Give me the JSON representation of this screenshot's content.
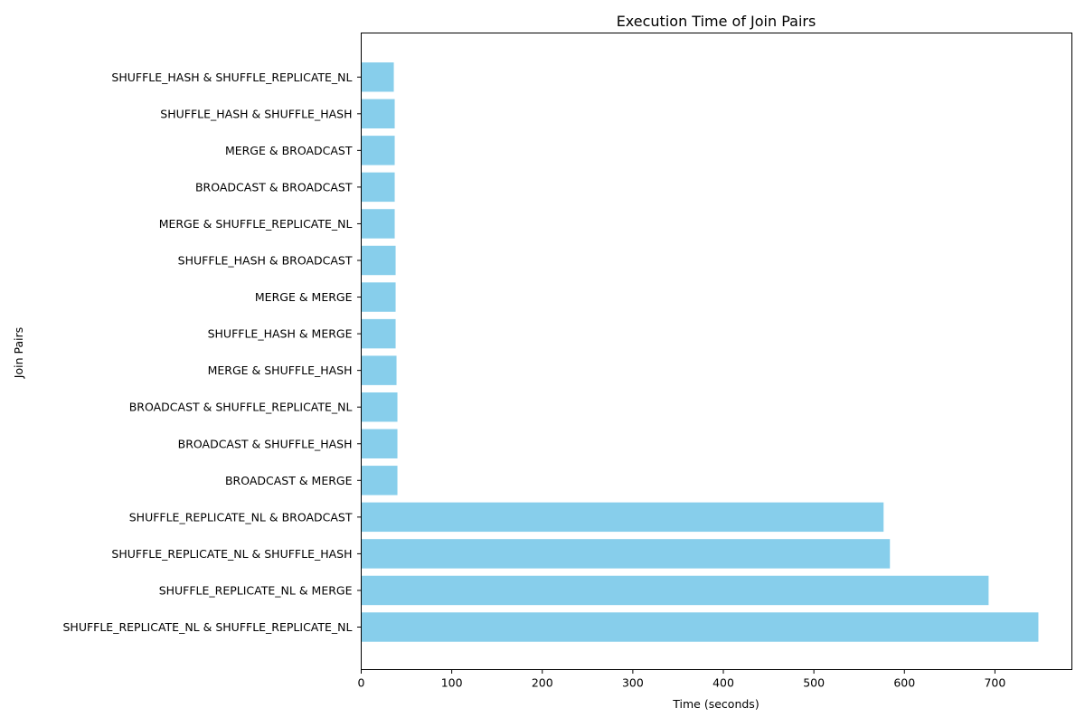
{
  "chart_data": {
    "type": "bar",
    "orientation": "horizontal",
    "title": "Execution Time of Join Pairs",
    "xlabel": "Time (seconds)",
    "ylabel": "Join Pairs",
    "xlim": [
      0,
      785
    ],
    "xticks": [
      0,
      100,
      200,
      300,
      400,
      500,
      600,
      700
    ],
    "grid": false,
    "bar_color": "#87ceeb",
    "categories": [
      "SHUFFLE_REPLICATE_NL & SHUFFLE_REPLICATE_NL",
      "SHUFFLE_REPLICATE_NL & MERGE",
      "SHUFFLE_REPLICATE_NL & SHUFFLE_HASH",
      "SHUFFLE_REPLICATE_NL & BROADCAST",
      "BROADCAST & MERGE",
      "BROADCAST & SHUFFLE_HASH",
      "BROADCAST & SHUFFLE_REPLICATE_NL",
      "MERGE & SHUFFLE_HASH",
      "SHUFFLE_HASH & MERGE",
      "MERGE & MERGE",
      "SHUFFLE_HASH & BROADCAST",
      "MERGE & SHUFFLE_REPLICATE_NL",
      "BROADCAST & BROADCAST",
      "MERGE & BROADCAST",
      "SHUFFLE_HASH & SHUFFLE_HASH",
      "SHUFFLE_HASH & SHUFFLE_REPLICATE_NL"
    ],
    "values": [
      748,
      693,
      584,
      577,
      40,
      40,
      40,
      39,
      38,
      38,
      38,
      37,
      37,
      37,
      37,
      36
    ]
  }
}
